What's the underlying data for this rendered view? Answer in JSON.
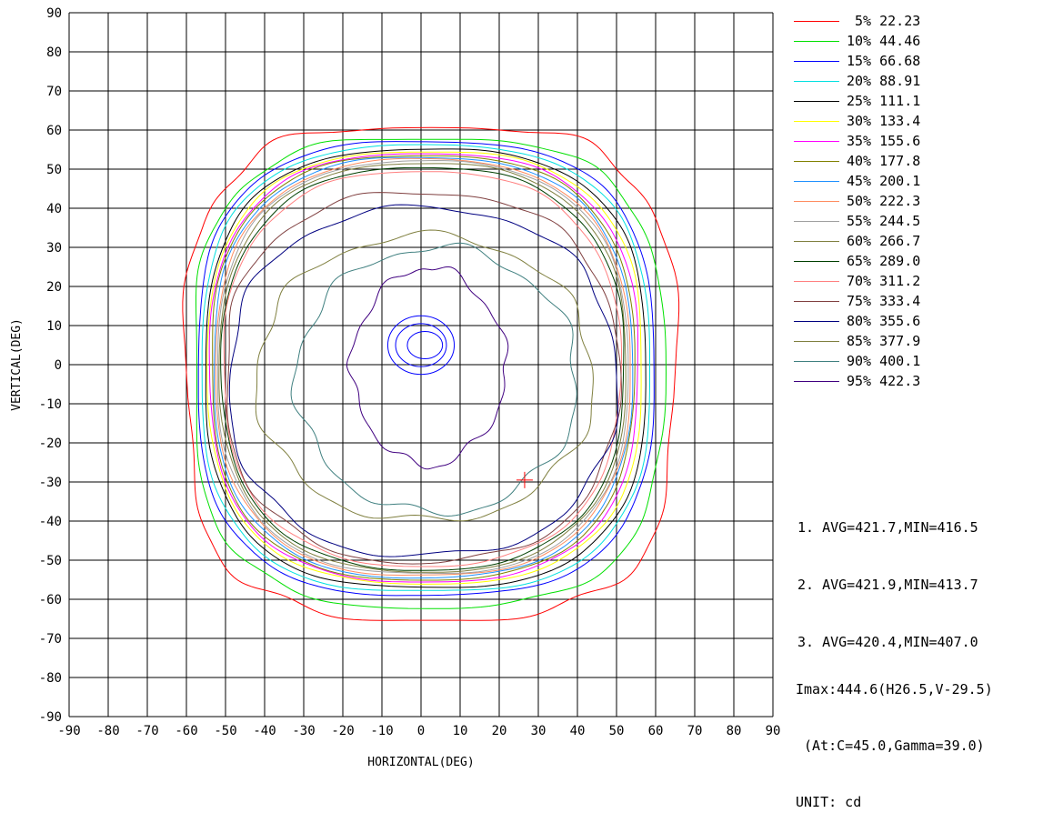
{
  "chart_data": {
    "type": "contour",
    "xlabel": "HORIZONTAL(DEG)",
    "ylabel": "VERTICAL(DEG)",
    "xlim": [
      -90,
      90
    ],
    "ylim": [
      -90,
      90
    ],
    "x_ticks": [
      -90,
      -80,
      -70,
      -60,
      -50,
      -40,
      -30,
      -20,
      -10,
      0,
      10,
      20,
      30,
      40,
      50,
      60,
      70,
      80,
      90
    ],
    "y_ticks": [
      90,
      80,
      70,
      60,
      50,
      40,
      30,
      20,
      10,
      0,
      -10,
      -20,
      -30,
      -40,
      -50,
      -60,
      -70,
      -80,
      -90
    ],
    "grid": true,
    "legend_position": "right",
    "legend": [
      {
        "label": " 5% 22.23",
        "color": "#ff0000"
      },
      {
        "label": "10% 44.46",
        "color": "#00e000"
      },
      {
        "label": "15% 66.68",
        "color": "#0000ff"
      },
      {
        "label": "20% 88.91",
        "color": "#00e0e0"
      },
      {
        "label": "25% 111.1",
        "color": "#000000"
      },
      {
        "label": "30% 133.4",
        "color": "#ffff00"
      },
      {
        "label": "35% 155.6",
        "color": "#ff00ff"
      },
      {
        "label": "40% 177.8",
        "color": "#808000"
      },
      {
        "label": "45% 200.1",
        "color": "#1e90ff"
      },
      {
        "label": "50% 222.3",
        "color": "#ff8c60"
      },
      {
        "label": "55% 244.5",
        "color": "#a0a0a0"
      },
      {
        "label": "60% 266.7",
        "color": "#808040"
      },
      {
        "label": "65% 289.0",
        "color": "#004000"
      },
      {
        "label": "70% 311.2",
        "color": "#ff8080"
      },
      {
        "label": "75% 333.4",
        "color": "#804040"
      },
      {
        "label": "80% 355.6",
        "color": "#000080"
      },
      {
        "label": "85% 377.9",
        "color": "#808040"
      },
      {
        "label": "90% 400.1",
        "color": "#408080"
      },
      {
        "label": "95% 422.3",
        "color": "#400080"
      }
    ],
    "contours": [
      {
        "level": 5,
        "color": "#ff0000",
        "xr": [
          -60,
          65
        ],
        "yr": [
          -65,
          61
        ],
        "n": 3.2,
        "wob": 1.5
      },
      {
        "level": 10,
        "color": "#00e000",
        "xr": [
          -58,
          62
        ],
        "yr": [
          -62,
          58
        ],
        "n": 3.0,
        "wob": 0.8
      },
      {
        "level": 15,
        "color": "#0000ff",
        "xr": [
          -57,
          59.5
        ],
        "yr": [
          -59,
          57
        ],
        "n": 2.9,
        "wob": 0.3
      },
      {
        "level": 20,
        "color": "#00e0e0",
        "xr": [
          -56,
          58.5
        ],
        "yr": [
          -58,
          56
        ],
        "n": 2.85,
        "wob": 0.3
      },
      {
        "level": 25,
        "color": "#000000",
        "xr": [
          -55,
          57.5
        ],
        "yr": [
          -57,
          55
        ],
        "n": 2.8,
        "wob": 0.3
      },
      {
        "level": 30,
        "color": "#ffff00",
        "xr": [
          -54.5,
          56.5
        ],
        "yr": [
          -56,
          54.5
        ],
        "n": 2.75,
        "wob": 0.3
      },
      {
        "level": 35,
        "color": "#ff00ff",
        "xr": [
          -54,
          55.5
        ],
        "yr": [
          -55.5,
          54
        ],
        "n": 2.7,
        "wob": 0.3
      },
      {
        "level": 40,
        "color": "#808000",
        "xr": [
          -53.5,
          54.5
        ],
        "yr": [
          -55,
          53.5
        ],
        "n": 2.7,
        "wob": 0.3
      },
      {
        "level": 45,
        "color": "#1e90ff",
        "xr": [
          -53,
          54
        ],
        "yr": [
          -54.5,
          53
        ],
        "n": 2.65,
        "wob": 0.3
      },
      {
        "level": 50,
        "color": "#ff8c60",
        "xr": [
          -52.5,
          53.5
        ],
        "yr": [
          -54,
          52.5
        ],
        "n": 2.6,
        "wob": 0.3
      },
      {
        "level": 55,
        "color": "#a0a0a0",
        "xr": [
          -52,
          53
        ],
        "yr": [
          -53.5,
          52
        ],
        "n": 2.6,
        "wob": 0.3
      },
      {
        "level": 60,
        "color": "#808040",
        "xr": [
          -51.5,
          52.5
        ],
        "yr": [
          -53,
          51.5
        ],
        "n": 2.55,
        "wob": 0.3
      },
      {
        "level": 65,
        "color": "#004000",
        "xr": [
          -51,
          52
        ],
        "yr": [
          -52.5,
          50.5
        ],
        "n": 2.5,
        "wob": 0.4
      },
      {
        "level": 70,
        "color": "#ff8080",
        "xr": [
          -50.5,
          51
        ],
        "yr": [
          -51.5,
          49.5
        ],
        "n": 2.5,
        "wob": 0.5
      },
      {
        "level": 75,
        "color": "#804040",
        "xr": [
          -50,
          50.5
        ],
        "yr": [
          -50.5,
          44
        ],
        "n": 2.4,
        "wob": 1.2
      },
      {
        "level": 80,
        "color": "#000080",
        "xr": [
          -49,
          50
        ],
        "yr": [
          -49,
          40
        ],
        "n": 2.3,
        "wob": 1.5
      },
      {
        "level": 85,
        "color": "#808040",
        "xr": [
          -42,
          44
        ],
        "yr": [
          -40,
          33
        ],
        "n": 2.1,
        "wob": 2.5
      },
      {
        "level": 90,
        "color": "#408080",
        "xr": [
          -32,
          40
        ],
        "yr": [
          -38,
          30
        ],
        "n": 2.0,
        "wob": 3.0
      },
      {
        "level": 95,
        "color": "#400080",
        "xr": [
          -18,
          22
        ],
        "yr": [
          -26,
          25
        ],
        "n": 1.8,
        "wob": 3.5
      }
    ],
    "hotspot_rings": [
      {
        "cx": 0,
        "cy": 5,
        "rx": 8.5,
        "ry": 7.5
      },
      {
        "cx": 0,
        "cy": 5,
        "rx": 6.5,
        "ry": 5.5
      },
      {
        "cx": 1,
        "cy": 5,
        "rx": 4.5,
        "ry": 3.5
      }
    ],
    "max_marker": {
      "x": 26.5,
      "y": -29.5
    }
  },
  "stats": [
    "1. AVG=421.7,MIN=416.5",
    "2. AVG=421.9,MIN=413.7",
    "3. AVG=420.4,MIN=407.0"
  ],
  "imax": "Imax:444.6(H26.5,V-29.5)",
  "at": " (At:C=45.0,Gamma=39.0)",
  "unit": "UNIT: cd"
}
